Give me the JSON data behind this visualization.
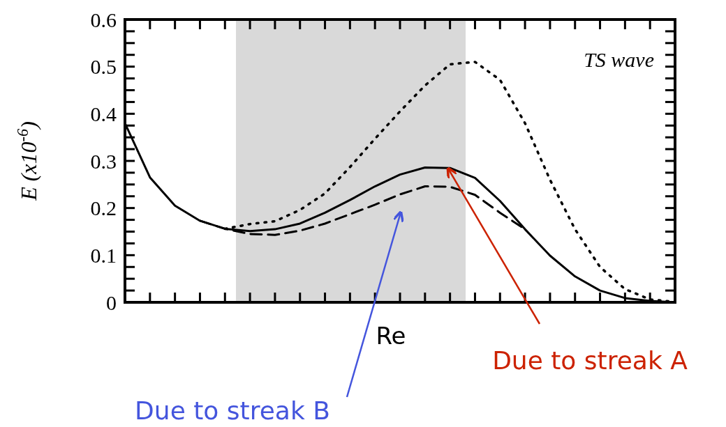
{
  "chart_data": {
    "type": "line",
    "xlabel": "Re",
    "ylabel": "E (x10$^{-6}$)",
    "tick_labels": "y",
    "grid": false,
    "legend": false,
    "marker": "none",
    "categories": [
      null,
      null,
      null,
      null,
      null,
      null,
      null,
      null,
      null,
      null,
      null,
      null,
      null,
      null,
      null,
      null,
      null,
      null,
      null,
      null,
      null,
      null,
      null
    ],
    "ylim": [
      0,
      0.6
    ],
    "yticks": [
      0,
      {
        "value": 0.025,
        "label": null
      },
      {
        "value": 0.05,
        "label": null
      },
      {
        "value": 0.075,
        "label": null
      },
      0.1,
      {
        "value": 0.125,
        "label": null
      },
      {
        "value": 0.15,
        "label": null
      },
      {
        "value": 0.175,
        "label": null
      },
      0.2,
      {
        "value": 0.225,
        "label": null
      },
      {
        "value": 0.25,
        "label": null
      },
      {
        "value": 0.275,
        "label": null
      },
      0.3,
      {
        "value": 0.325,
        "label": null
      },
      {
        "value": 0.35,
        "label": null
      },
      {
        "value": 0.375,
        "label": null
      },
      0.4,
      {
        "value": 0.425,
        "label": null
      },
      {
        "value": 0.45,
        "label": null
      },
      {
        "value": 0.475,
        "label": null
      },
      0.5,
      {
        "value": 0.525,
        "label": null
      },
      {
        "value": 0.55,
        "label": null
      },
      {
        "value": 0.575,
        "label": null
      },
      0.6
    ],
    "series": [
      {
        "color": "#000000",
        "line_style": "solid",
        "values": [
          0.38,
          0.265,
          0.205,
          0.173,
          0.156,
          0.151,
          0.155,
          0.167,
          0.19,
          0.217,
          0.246,
          0.271,
          0.286,
          0.285,
          0.264,
          0.215,
          0.155,
          0.099,
          0.055,
          0.025,
          0.009,
          0.003,
          0
        ]
      },
      {
        "color": "#000000",
        "line_style": "dashed",
        "values": [
          null,
          null,
          null,
          0.173,
          0.156,
          0.145,
          0.143,
          0.152,
          0.167,
          0.187,
          0.207,
          0.229,
          0.246,
          0.245,
          0.228,
          0.19,
          0.155,
          null,
          null,
          null,
          null,
          null,
          null
        ]
      },
      {
        "color": "#000000",
        "line_style": "dotted",
        "values": [
          null,
          null,
          null,
          null,
          0.156,
          0.166,
          0.172,
          0.196,
          0.231,
          0.287,
          0.347,
          0.405,
          0.46,
          0.505,
          0.51,
          0.472,
          0.38,
          0.26,
          0.155,
          0.075,
          0.028,
          0.006,
          0.001
        ]
      }
    ],
    "annotations": [
      "TS wave",
      "Due to streak A",
      "Due to streak B"
    ]
  }
}
